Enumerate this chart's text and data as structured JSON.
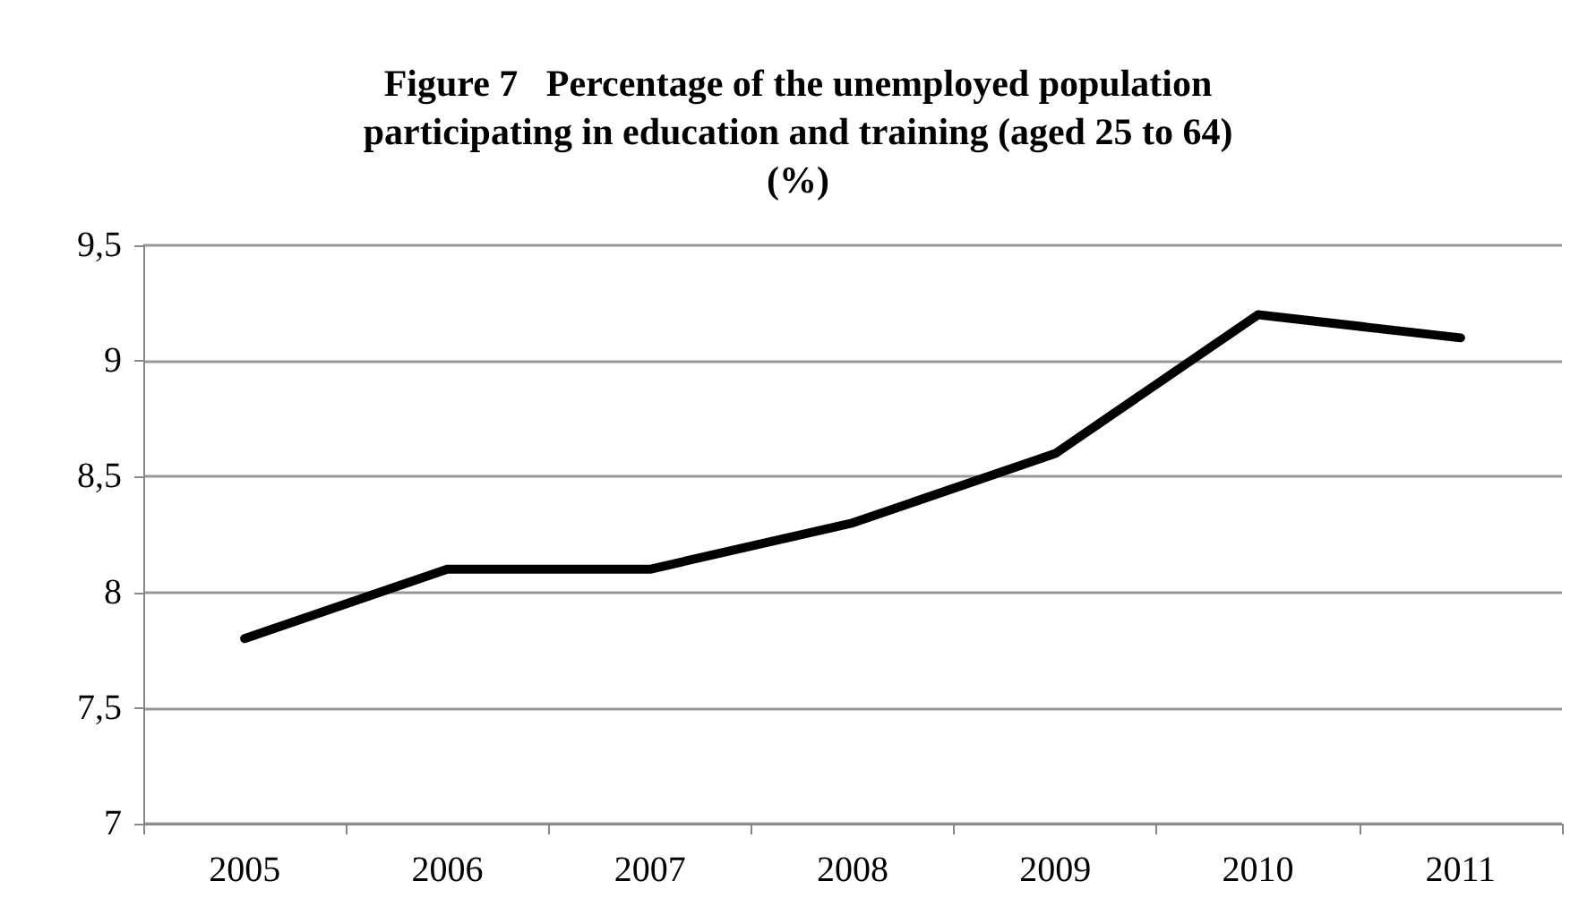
{
  "chart_data": {
    "type": "line",
    "title": "Figure 7   Percentage of the unemployed population\nparticipating in education and training (aged 25 to 64)\n(%)",
    "categories": [
      "2005",
      "2006",
      "2007",
      "2008",
      "2009",
      "2010",
      "2011"
    ],
    "series": [
      {
        "color": "#000000",
        "values": [
          7.8,
          8.1,
          8.1,
          8.3,
          8.6,
          9.2,
          9.1
        ]
      }
    ],
    "ylim": [
      7,
      9.5
    ],
    "yticks": [
      7,
      {
        "value": 7.5,
        "label": "7,5"
      },
      8,
      {
        "value": 8.5,
        "label": "8,5"
      },
      9,
      {
        "value": 9.5,
        "label": "9,5"
      }
    ],
    "grid": "y",
    "marker": "none",
    "line_style": "solid"
  }
}
